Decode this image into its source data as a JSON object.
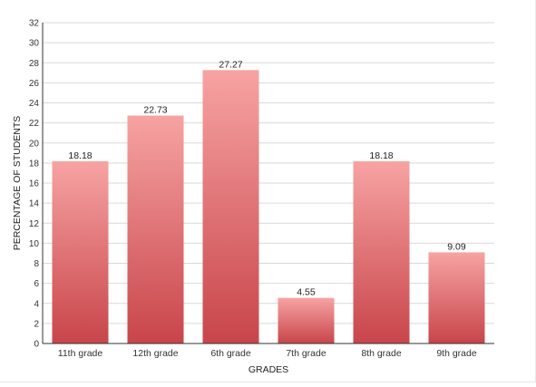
{
  "chart_data": {
    "type": "bar",
    "title": "",
    "xlabel": "GRADES",
    "ylabel": "PERCENTAGE OF STUDENTS",
    "categories": [
      "11th grade",
      "12th grade",
      "6th grade",
      "7th grade",
      "8th grade",
      "9th grade"
    ],
    "values": [
      18.18,
      22.73,
      27.27,
      4.55,
      18.18,
      9.09
    ],
    "value_labels": [
      "18.18",
      "22.73",
      "27.27",
      "4.55",
      "18.18",
      "9.09"
    ],
    "ylim": [
      0,
      32
    ],
    "yticks": [
      0,
      2,
      4,
      6,
      8,
      10,
      12,
      14,
      16,
      18,
      20,
      22,
      24,
      26,
      28,
      30,
      32
    ],
    "grid": true,
    "legend": "none",
    "colors": {
      "bar_top": "#f7a3a3",
      "bar_bottom": "#c8454a",
      "grid": "#d9d9d9",
      "axis": "#333333"
    }
  }
}
